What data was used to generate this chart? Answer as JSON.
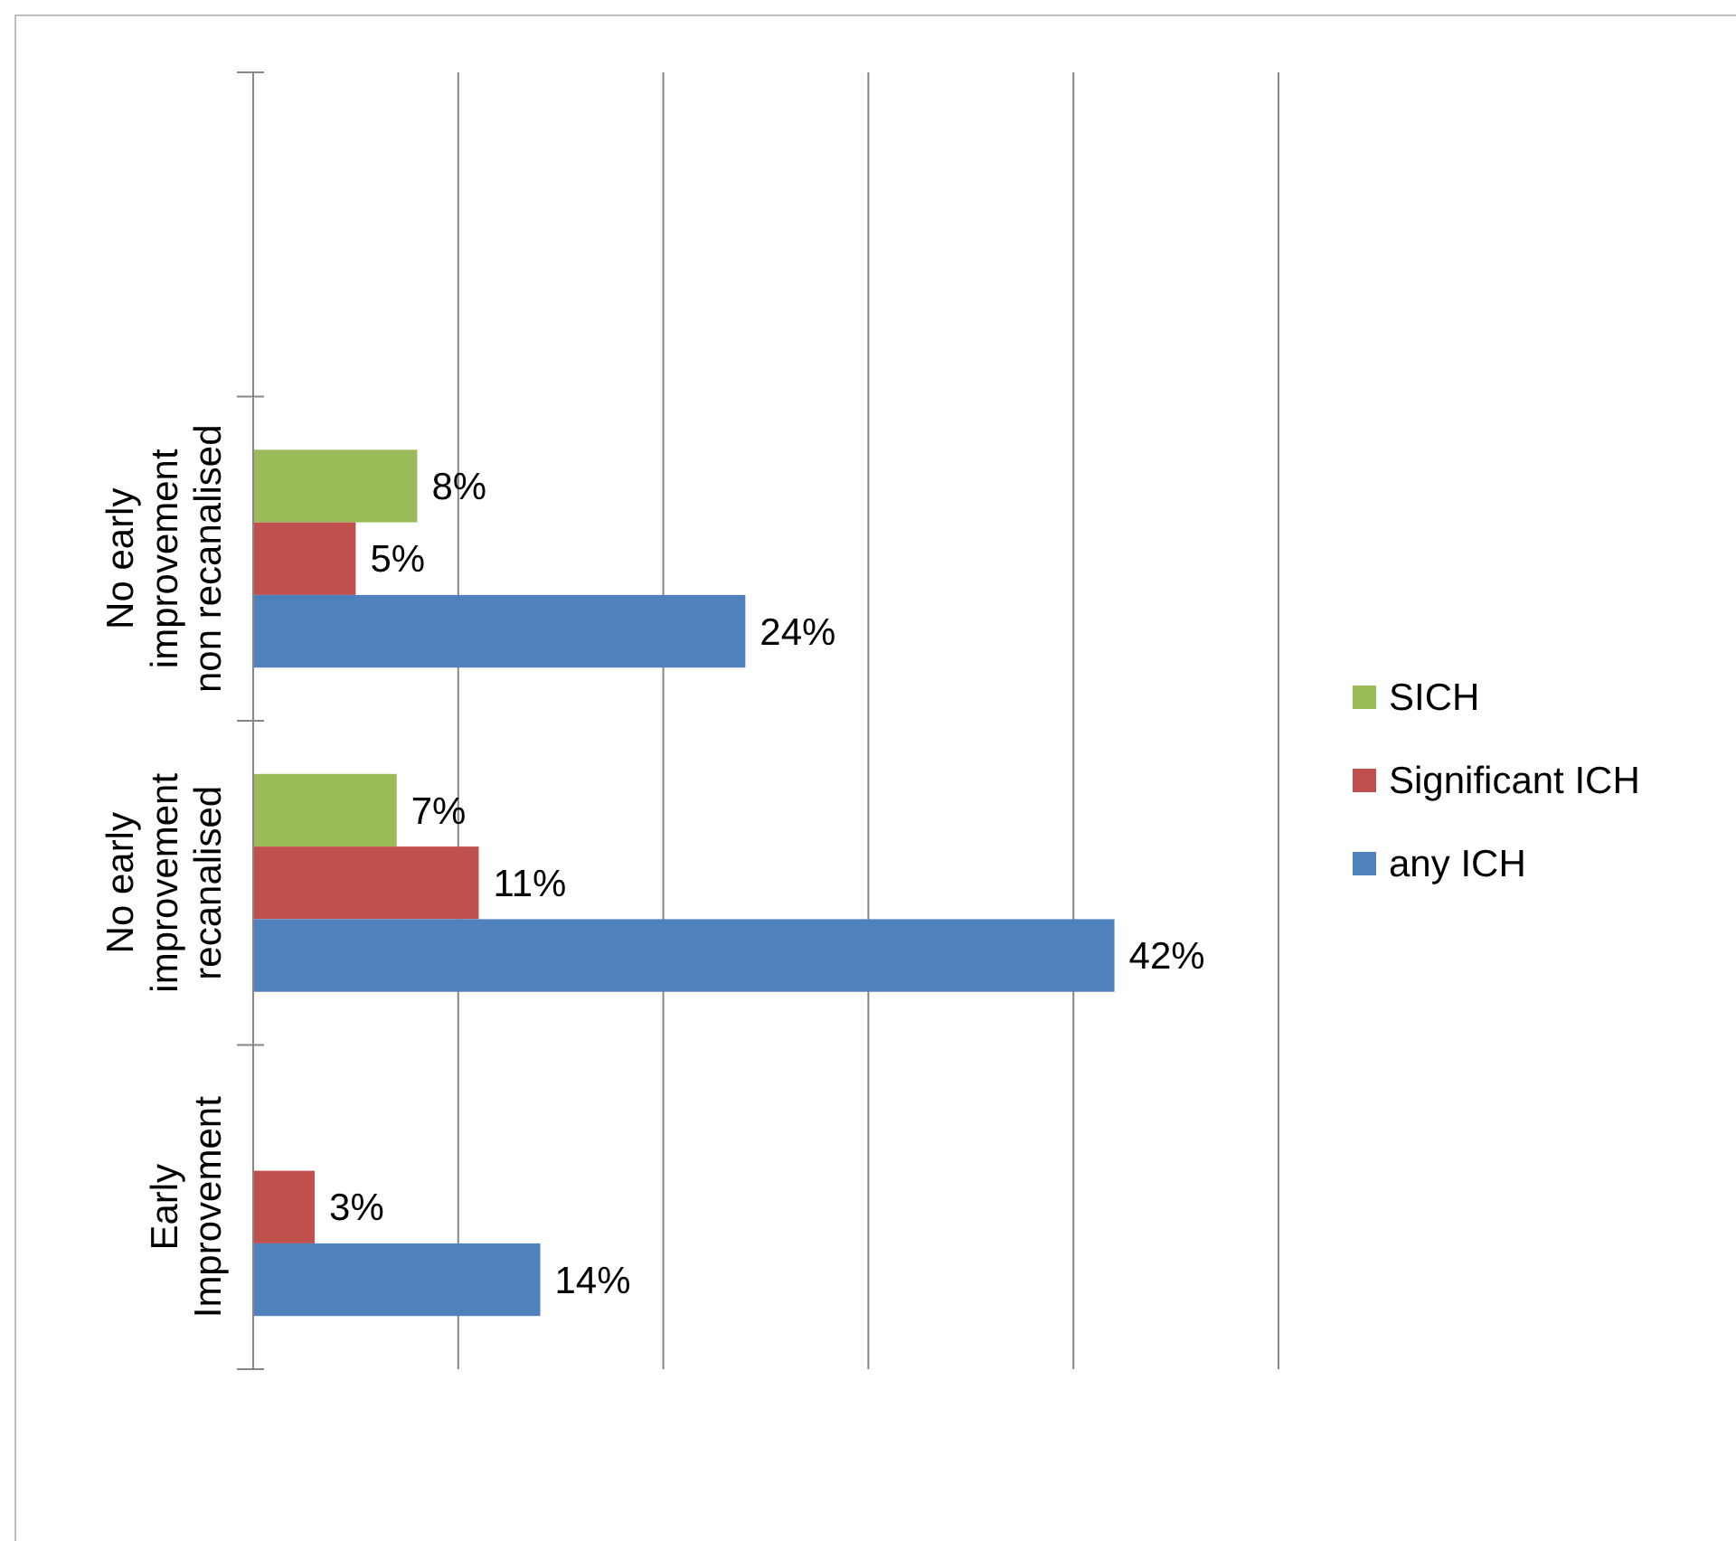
{
  "chart_data": {
    "type": "bar",
    "orientation": "horizontal",
    "categories": [
      null,
      "No early improvement non recanalised",
      "No early improvement recanalised",
      "Early Improvement"
    ],
    "series": [
      {
        "name": "SICH",
        "color": "#9bbb59",
        "values": [
          null,
          8,
          7,
          null
        ],
        "value_labels": [
          null,
          "8%",
          "7%",
          null
        ]
      },
      {
        "name": "Significant ICH",
        "color": "#c0504d",
        "values": [
          null,
          5,
          11,
          3
        ],
        "value_labels": [
          null,
          "5%",
          "11%",
          "3%"
        ]
      },
      {
        "name": "any ICH",
        "color": "#4f81bd",
        "values": [
          null,
          24,
          42,
          14
        ],
        "value_labels": [
          null,
          "24%",
          "42%",
          "14%"
        ]
      }
    ],
    "xlim": [
      0,
      50
    ],
    "xticks": [
      {
        "value": 0,
        "label": null
      },
      {
        "value": 10,
        "label": null
      },
      {
        "value": 20,
        "label": null
      },
      {
        "value": 30,
        "label": null
      },
      {
        "value": 40,
        "label": null
      },
      {
        "value": 50,
        "label": null
      }
    ],
    "grid": "x",
    "legend": "right",
    "tick_labels": "y"
  }
}
